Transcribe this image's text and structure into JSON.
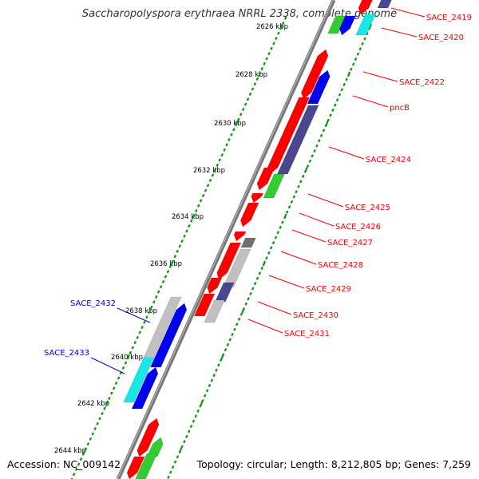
{
  "title": "Saccharopolyspora erythraea NRRL 2338, complete genome",
  "footer": {
    "accession": "Accession: NC_009142",
    "topology": "Topology: circular; Length: 8,212,805 bp; Genes: 7,259"
  },
  "colors": {
    "red": "#ff0000",
    "blue": "#0000ee",
    "navy": "#4a468f",
    "green": "#33cc33",
    "cyan": "#19e6e6",
    "gray": "#c0c0c0",
    "darkgray": "#707070",
    "backbone": "#777777",
    "tick": "#119911",
    "red_label": "#ee0000",
    "blue_label": "#0000cc"
  },
  "scale_labels": [
    "2626 kbp",
    "2628 kbp",
    "2630 kbp",
    "2632 kbp",
    "2634 kbp",
    "2636 kbp",
    "2638 kbp",
    "2640 kbp",
    "2642 kbp",
    "2644 kbp"
  ],
  "gene_labels_right": [
    "SACE_2419",
    "SACE_2420",
    "SACE_2422",
    "pncB",
    "SACE_2424",
    "SACE_2425",
    "SACE_2426",
    "SACE_2427",
    "SACE_2428",
    "SACE_2429",
    "SACE_2430",
    "SACE_2431"
  ],
  "gene_labels_left": [
    "SACE_2432",
    "SACE_2433"
  ]
}
